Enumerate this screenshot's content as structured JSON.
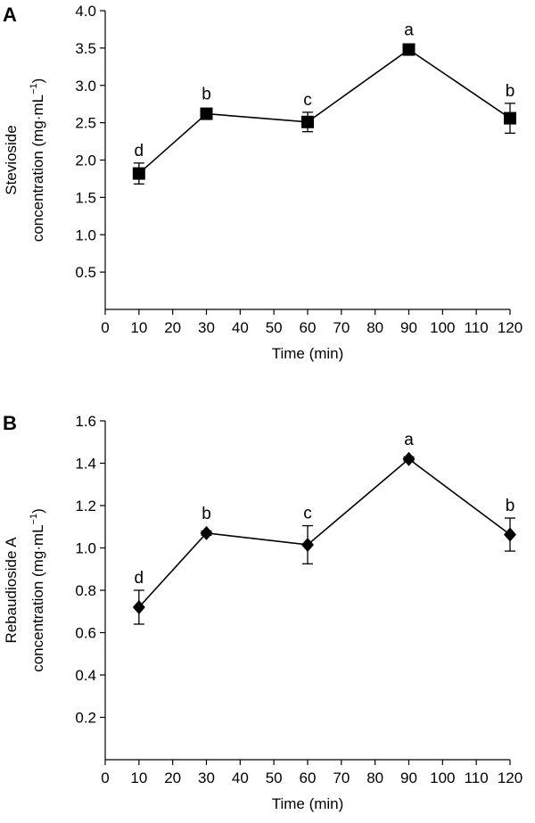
{
  "colors": {
    "axis": "#000000",
    "marker": "#000000",
    "background": "#ffffff"
  },
  "chart_data": [
    {
      "panel_label": "A",
      "type": "line",
      "marker": "square",
      "xlabel": "Time (min)",
      "ylabel_line1": "Stevioside",
      "ylabel_line2": "concentration (mg·mL",
      "ylabel_sup": "−1",
      "ylabel_close": ")",
      "xlim": [
        0,
        120
      ],
      "ylim": [
        0,
        4.0
      ],
      "xticks": [
        "0",
        "10",
        "20",
        "30",
        "40",
        "50",
        "60",
        "70",
        "80",
        "90",
        "100",
        "110",
        "120"
      ],
      "yticks": [
        "0.5",
        "1.0",
        "1.5",
        "2.0",
        "2.5",
        "3.0",
        "3.5",
        "4.0"
      ],
      "ytick_values": [
        0.5,
        1.0,
        1.5,
        2.0,
        2.5,
        3.0,
        3.5,
        4.0
      ],
      "x": [
        10,
        30,
        60,
        90,
        120
      ],
      "y": [
        1.82,
        2.62,
        2.51,
        3.48,
        2.56
      ],
      "error": [
        0.14,
        0.04,
        0.13,
        0.05,
        0.2
      ],
      "annotations": [
        "d",
        "b",
        "c",
        "a",
        "b"
      ],
      "grid": false
    },
    {
      "panel_label": "B",
      "type": "line",
      "marker": "diamond",
      "xlabel": "Time (min)",
      "ylabel_line1": "Rebaudioside A",
      "ylabel_line2": "concentration (mg·mL",
      "ylabel_sup": "−1",
      "ylabel_close": ")",
      "xlim": [
        0,
        120
      ],
      "ylim": [
        0,
        1.6
      ],
      "xticks": [
        "0",
        "10",
        "20",
        "30",
        "40",
        "50",
        "60",
        "70",
        "80",
        "90",
        "100",
        "110",
        "120"
      ],
      "yticks": [
        "0.2",
        "0.4",
        "0.6",
        "0.8",
        "1.0",
        "1.2",
        "1.4",
        "1.6"
      ],
      "ytick_values": [
        0.2,
        0.4,
        0.6,
        0.8,
        1.0,
        1.2,
        1.4,
        1.6
      ],
      "x": [
        10,
        30,
        60,
        90,
        120
      ],
      "y": [
        0.72,
        1.07,
        1.015,
        1.42,
        1.063
      ],
      "error": [
        0.08,
        0.01,
        0.09,
        0.01,
        0.078
      ],
      "annotations": [
        "d",
        "b",
        "c",
        "a",
        "b"
      ],
      "grid": false
    }
  ]
}
